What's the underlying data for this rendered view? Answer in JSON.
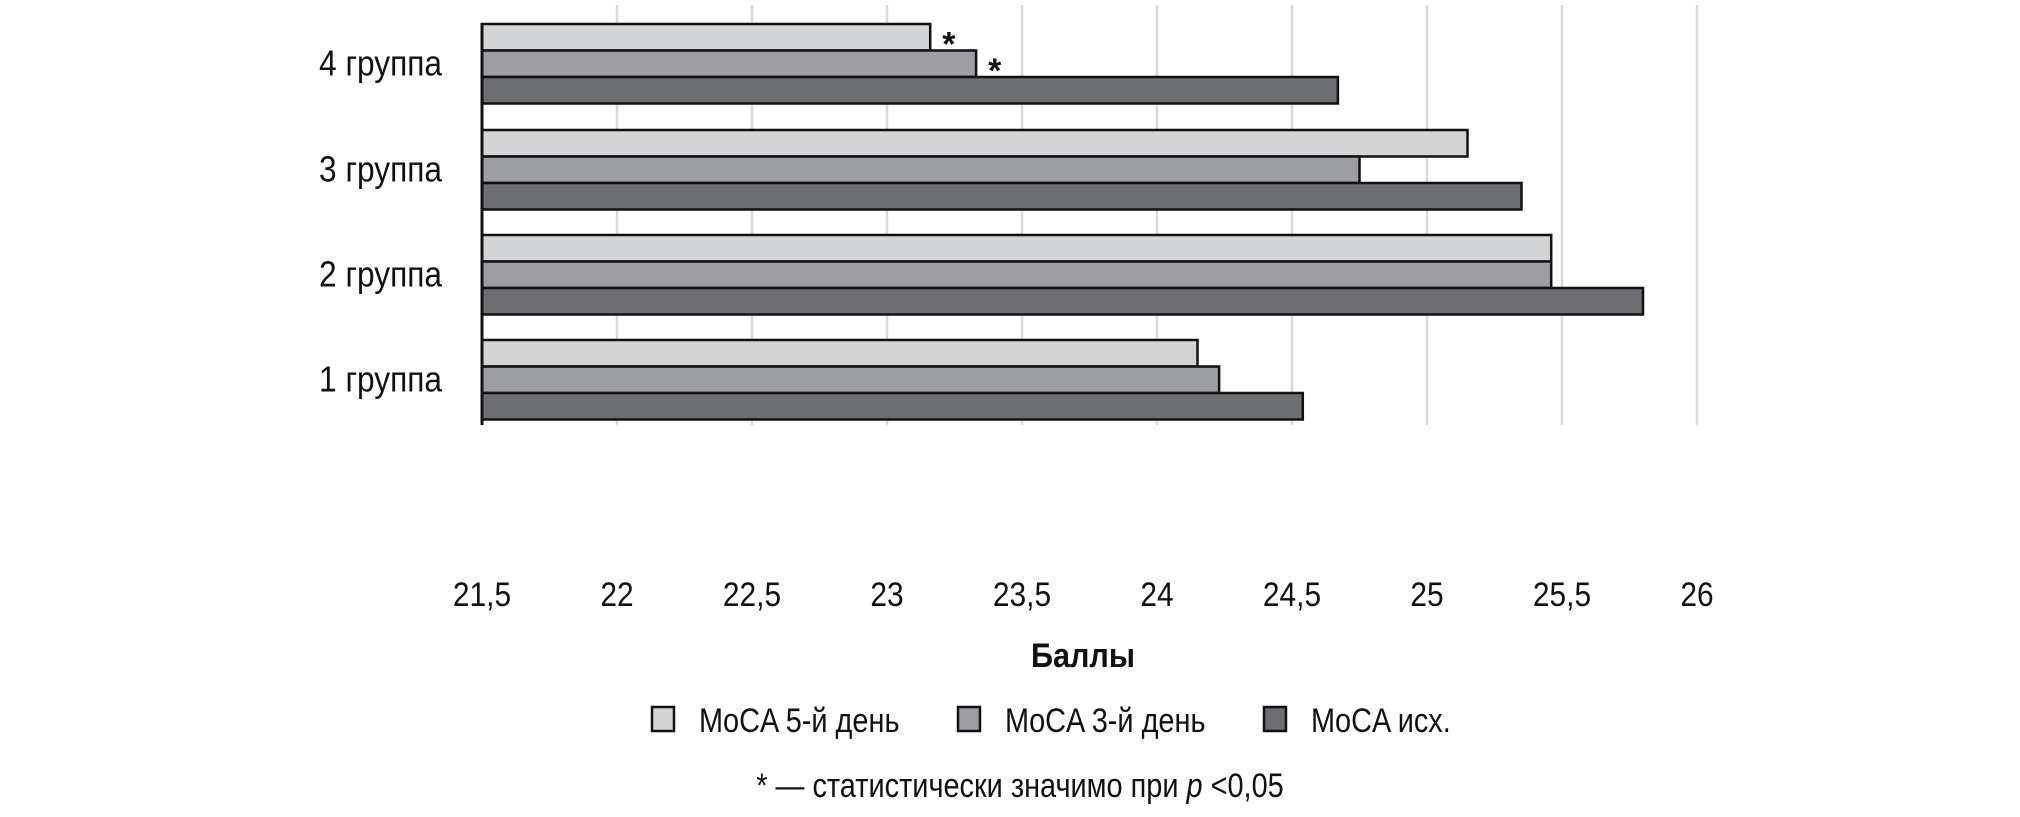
{
  "chart_data": {
    "type": "bar",
    "orientation": "horizontal",
    "title": "",
    "xlabel": "Баллы",
    "ylabel": "",
    "xlim": [
      21.5,
      26
    ],
    "x_ticks": [
      21.5,
      22,
      22.5,
      23,
      23.5,
      24,
      24.5,
      25,
      25.5,
      26
    ],
    "x_tick_labels": [
      "21,5",
      "22",
      "22,5",
      "23",
      "23,5",
      "24",
      "24,5",
      "25",
      "25,5",
      "26"
    ],
    "grid": true,
    "categories": [
      "1 группа",
      "2 группа",
      "3 группа",
      "4 группа"
    ],
    "series": [
      {
        "name": "MoCA 5-й день",
        "color": "#d3d4d6",
        "values": [
          24.15,
          25.46,
          25.15,
          23.16
        ]
      },
      {
        "name": "MoCA 3-й день",
        "color": "#9d9ea1",
        "values": [
          24.23,
          25.46,
          24.75,
          23.33
        ]
      },
      {
        "name": "MoCA исх.",
        "color": "#6d6e72",
        "values": [
          24.54,
          25.8,
          25.35,
          24.67
        ]
      }
    ],
    "annotations": [
      {
        "category": "4 группа",
        "series": "MoCA 5-й день",
        "text": "*"
      },
      {
        "category": "4 группа",
        "series": "MoCA 3-й день",
        "text": "*"
      }
    ],
    "legend_position": "bottom",
    "footnote": {
      "prefix": "* — статистически значимо при ",
      "italic": "p",
      "suffix": " <0,05"
    }
  }
}
